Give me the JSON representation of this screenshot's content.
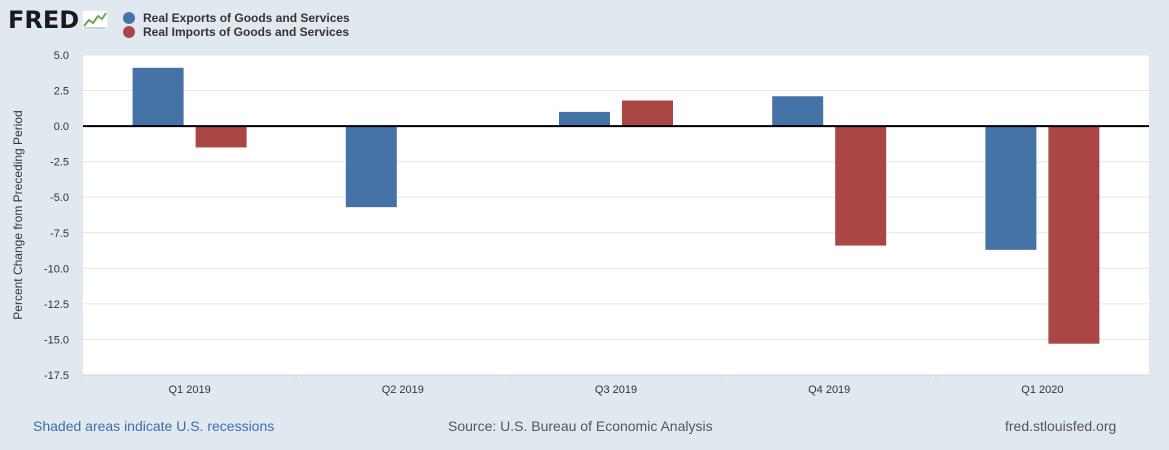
{
  "logo": {
    "text": "FRED"
  },
  "chart_data": {
    "type": "bar",
    "categories": [
      "Q1 2019",
      "Q2 2019",
      "Q3 2019",
      "Q4 2019",
      "Q1 2020"
    ],
    "series": [
      {
        "name": "Real Exports of Goods and Services",
        "color": "#4572a7",
        "values": [
          4.1,
          -5.7,
          1.0,
          2.1,
          -8.7
        ]
      },
      {
        "name": "Real Imports of Goods and Services",
        "color": "#aa4643",
        "values": [
          -1.5,
          0.0,
          1.8,
          -8.4,
          -15.3
        ]
      }
    ],
    "ylabel": "Percent Change from Preceding Period",
    "ylim": [
      -17.5,
      5.0
    ],
    "yticks": [
      "5.0",
      "2.5",
      "0.0",
      "-2.5",
      "-5.0",
      "-7.5",
      "-10.0",
      "-12.5",
      "-15.0",
      "-17.5"
    ],
    "ytick_values": [
      5.0,
      2.5,
      0.0,
      -2.5,
      -5.0,
      -7.5,
      -10.0,
      -12.5,
      -15.0,
      -17.5
    ],
    "grid": true,
    "legend_position": "top-left"
  },
  "footer": {
    "recessions_note": "Shaded areas indicate U.S. recessions",
    "source": "Source: U.S. Bureau of Economic Analysis",
    "site": "fred.stlouisfed.org"
  }
}
